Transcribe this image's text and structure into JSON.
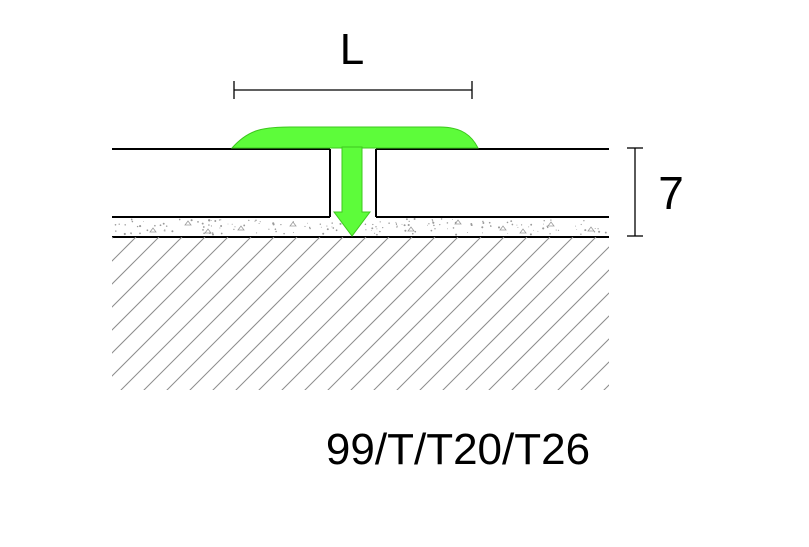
{
  "diagram": {
    "width_label": "L",
    "height_label": "7",
    "model_code": "99/T/T20/T26"
  },
  "colors": {
    "profile": "#5dfc3a",
    "line": "#000000",
    "hatch": "#8c8c8c",
    "screed_dots": "#9a9a9a",
    "background": "#ffffff"
  }
}
